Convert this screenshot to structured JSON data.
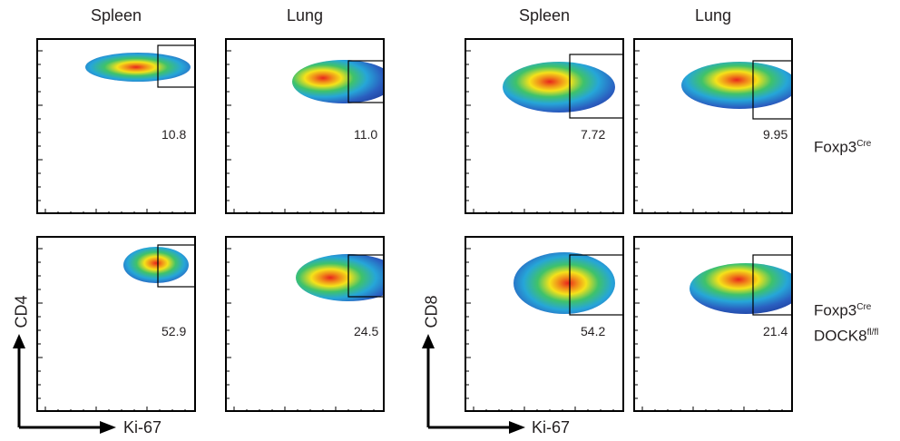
{
  "columns": [
    "Spleen",
    "Lung",
    "Spleen",
    "Lung"
  ],
  "rows": [
    {
      "label_main": "Foxp3",
      "label_sup": "Cre",
      "label_line2": "",
      "label_line2_sup": ""
    },
    {
      "label_main": "Foxp3",
      "label_sup": "Cre",
      "label_line2": "DOCK8",
      "label_line2_sup": "fl/fl"
    }
  ],
  "axes": {
    "left_x": "Ki-67",
    "left_y": "CD4",
    "right_x": "Ki-67",
    "right_y": "CD8"
  },
  "colors": {
    "density_high": "#e8261c",
    "density_mid": "#f5e21a",
    "density_low": "#2a5fc0",
    "density_edge": "#1f3d9c",
    "gate": "#000000"
  },
  "chart_data": [
    {
      "type": "flow-cytometry-density",
      "population": "CD4",
      "tissue": "Spleen",
      "genotype": "Foxp3Cre",
      "gate_percent": 10.8
    },
    {
      "type": "flow-cytometry-density",
      "population": "CD4",
      "tissue": "Lung",
      "genotype": "Foxp3Cre",
      "gate_percent": 11.0
    },
    {
      "type": "flow-cytometry-density",
      "population": "CD8",
      "tissue": "Spleen",
      "genotype": "Foxp3Cre",
      "gate_percent": 7.72
    },
    {
      "type": "flow-cytometry-density",
      "population": "CD8",
      "tissue": "Lung",
      "genotype": "Foxp3Cre",
      "gate_percent": 9.95
    },
    {
      "type": "flow-cytometry-density",
      "population": "CD4",
      "tissue": "Spleen",
      "genotype": "Foxp3Cre DOCK8fl/fl",
      "gate_percent": 52.9
    },
    {
      "type": "flow-cytometry-density",
      "population": "CD4",
      "tissue": "Lung",
      "genotype": "Foxp3Cre DOCK8fl/fl",
      "gate_percent": 24.5
    },
    {
      "type": "flow-cytometry-density",
      "population": "CD8",
      "tissue": "Spleen",
      "genotype": "Foxp3Cre DOCK8fl/fl",
      "gate_percent": 54.2
    },
    {
      "type": "flow-cytometry-density",
      "population": "CD8",
      "tissue": "Lung",
      "genotype": "Foxp3Cre DOCK8fl/fl",
      "gate_percent": 21.4
    }
  ],
  "gate_labels": [
    "10.8",
    "11.0",
    "7.72",
    "9.95",
    "52.9",
    "24.5",
    "54.2",
    "21.4"
  ]
}
